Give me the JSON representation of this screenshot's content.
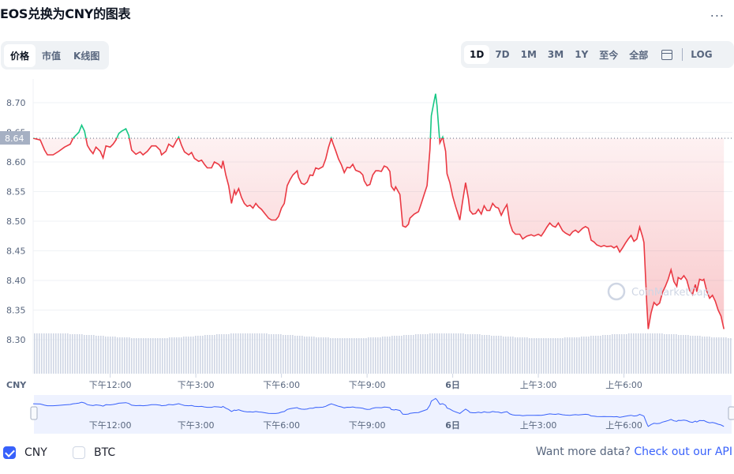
{
  "header": {
    "title": "EOS兑换为CNY的图表",
    "more_label": "..."
  },
  "tabs": [
    {
      "label": "价格",
      "active": true
    },
    {
      "label": "市值",
      "active": false
    },
    {
      "label": "K线图",
      "active": false
    }
  ],
  "ranges": [
    {
      "label": "1D",
      "active": true
    },
    {
      "label": "7D",
      "active": false
    },
    {
      "label": "1M",
      "active": false
    },
    {
      "label": "3M",
      "active": false
    },
    {
      "label": "1Y",
      "active": false
    },
    {
      "label": "至今",
      "active": false
    },
    {
      "label": "全部",
      "active": false
    }
  ],
  "log_label": "LOG",
  "colors": {
    "up": "#16c784",
    "down": "#ea3943",
    "navigator": "#3861fb",
    "volume": "#cfd6e4"
  },
  "chart_data": {
    "type": "line",
    "y_ticks": [
      "8.70",
      "8.65",
      "8.60",
      "8.55",
      "8.50",
      "8.45",
      "8.40",
      "8.35",
      "8.30"
    ],
    "ylim": [
      8.26,
      8.72
    ],
    "reference_price": 8.64,
    "reference_label": "8.64",
    "x_ticks": [
      "下午12:00",
      "下午3:00",
      "下午6:00",
      "下午9:00",
      "6日",
      "上午3:00",
      "上午6:00"
    ],
    "x_unit_label": "CNY",
    "x_range_hours": [
      0,
      24.5
    ],
    "x_tick_hours": [
      2.7,
      5.7,
      8.7,
      11.7,
      14.7,
      17.7,
      20.7
    ],
    "series": [
      {
        "name": "CNY",
        "points": [
          [
            0,
            8.64
          ],
          [
            0.25,
            8.637
          ],
          [
            0.4,
            8.62
          ],
          [
            0.5,
            8.612
          ],
          [
            0.7,
            8.612
          ],
          [
            0.9,
            8.618
          ],
          [
            1.1,
            8.625
          ],
          [
            1.3,
            8.63
          ],
          [
            1.4,
            8.64
          ],
          [
            1.5,
            8.645
          ],
          [
            1.6,
            8.65
          ],
          [
            1.7,
            8.662
          ],
          [
            1.8,
            8.652
          ],
          [
            1.9,
            8.628
          ],
          [
            2.0,
            8.62
          ],
          [
            2.1,
            8.614
          ],
          [
            2.2,
            8.625
          ],
          [
            2.35,
            8.618
          ],
          [
            2.45,
            8.607
          ],
          [
            2.55,
            8.627
          ],
          [
            2.7,
            8.625
          ],
          [
            2.8,
            8.63
          ],
          [
            2.9,
            8.637
          ],
          [
            3.0,
            8.648
          ],
          [
            3.1,
            8.652
          ],
          [
            3.25,
            8.656
          ],
          [
            3.35,
            8.645
          ],
          [
            3.45,
            8.62
          ],
          [
            3.6,
            8.613
          ],
          [
            3.75,
            8.617
          ],
          [
            3.85,
            8.612
          ],
          [
            4.0,
            8.618
          ],
          [
            4.15,
            8.627
          ],
          [
            4.3,
            8.627
          ],
          [
            4.45,
            8.62
          ],
          [
            4.5,
            8.612
          ],
          [
            4.65,
            8.618
          ],
          [
            4.75,
            8.63
          ],
          [
            4.9,
            8.625
          ],
          [
            5.0,
            8.634
          ],
          [
            5.1,
            8.642
          ],
          [
            5.2,
            8.628
          ],
          [
            5.3,
            8.617
          ],
          [
            5.45,
            8.612
          ],
          [
            5.55,
            8.616
          ],
          [
            5.65,
            8.606
          ],
          [
            5.8,
            8.601
          ],
          [
            5.9,
            8.603
          ],
          [
            6.0,
            8.596
          ],
          [
            6.1,
            8.59
          ],
          [
            6.25,
            8.59
          ],
          [
            6.35,
            8.6
          ],
          [
            6.5,
            8.596
          ],
          [
            6.6,
            8.59
          ],
          [
            6.65,
            8.602
          ],
          [
            6.75,
            8.578
          ],
          [
            6.85,
            8.56
          ],
          [
            6.95,
            8.53
          ],
          [
            7.05,
            8.552
          ],
          [
            7.1,
            8.545
          ],
          [
            7.2,
            8.555
          ],
          [
            7.3,
            8.54
          ],
          [
            7.4,
            8.53
          ],
          [
            7.5,
            8.525
          ],
          [
            7.6,
            8.527
          ],
          [
            7.7,
            8.522
          ],
          [
            7.8,
            8.53
          ],
          [
            7.9,
            8.524
          ],
          [
            8.0,
            8.52
          ],
          [
            8.1,
            8.514
          ],
          [
            8.25,
            8.505
          ],
          [
            8.35,
            8.502
          ],
          [
            8.5,
            8.502
          ],
          [
            8.6,
            8.508
          ],
          [
            8.7,
            8.522
          ],
          [
            8.8,
            8.53
          ],
          [
            8.9,
            8.56
          ],
          [
            9.0,
            8.57
          ],
          [
            9.1,
            8.578
          ],
          [
            9.25,
            8.585
          ],
          [
            9.3,
            8.574
          ],
          [
            9.4,
            8.564
          ],
          [
            9.5,
            8.562
          ],
          [
            9.6,
            8.566
          ],
          [
            9.7,
            8.578
          ],
          [
            9.8,
            8.577
          ],
          [
            9.9,
            8.59
          ],
          [
            10.0,
            8.588
          ],
          [
            10.15,
            8.592
          ],
          [
            10.25,
            8.605
          ],
          [
            10.35,
            8.625
          ],
          [
            10.45,
            8.64
          ],
          [
            10.5,
            8.632
          ],
          [
            10.6,
            8.619
          ],
          [
            10.7,
            8.605
          ],
          [
            10.8,
            8.595
          ],
          [
            10.9,
            8.582
          ],
          [
            11.0,
            8.591
          ],
          [
            11.1,
            8.59
          ],
          [
            11.2,
            8.596
          ],
          [
            11.3,
            8.586
          ],
          [
            11.45,
            8.583
          ],
          [
            11.55,
            8.578
          ],
          [
            11.6,
            8.568
          ],
          [
            11.7,
            8.56
          ],
          [
            11.8,
            8.562
          ],
          [
            11.9,
            8.578
          ],
          [
            12.0,
            8.585
          ],
          [
            12.1,
            8.585
          ],
          [
            12.2,
            8.584
          ],
          [
            12.3,
            8.593
          ],
          [
            12.4,
            8.591
          ],
          [
            12.5,
            8.584
          ],
          [
            12.55,
            8.559
          ],
          [
            12.65,
            8.552
          ],
          [
            12.7,
            8.558
          ],
          [
            12.85,
            8.545
          ],
          [
            12.95,
            8.492
          ],
          [
            13.05,
            8.49
          ],
          [
            13.15,
            8.495
          ],
          [
            13.2,
            8.505
          ],
          [
            13.35,
            8.512
          ],
          [
            13.5,
            8.516
          ],
          [
            13.6,
            8.53
          ],
          [
            13.7,
            8.545
          ],
          [
            13.8,
            8.56
          ],
          [
            13.9,
            8.62
          ],
          [
            13.95,
            8.678
          ],
          [
            14.05,
            8.703
          ],
          [
            14.1,
            8.715
          ],
          [
            14.15,
            8.695
          ],
          [
            14.25,
            8.632
          ],
          [
            14.35,
            8.642
          ],
          [
            14.45,
            8.618
          ],
          [
            14.5,
            8.58
          ],
          [
            14.6,
            8.565
          ],
          [
            14.7,
            8.542
          ],
          [
            14.8,
            8.525
          ],
          [
            14.9,
            8.51
          ],
          [
            14.95,
            8.502
          ],
          [
            15.05,
            8.535
          ],
          [
            15.15,
            8.565
          ],
          [
            15.25,
            8.538
          ],
          [
            15.3,
            8.518
          ],
          [
            15.4,
            8.512
          ],
          [
            15.5,
            8.513
          ],
          [
            15.6,
            8.52
          ],
          [
            15.7,
            8.512
          ],
          [
            15.8,
            8.526
          ],
          [
            15.9,
            8.518
          ],
          [
            16.0,
            8.518
          ],
          [
            16.1,
            8.53
          ],
          [
            16.2,
            8.524
          ],
          [
            16.3,
            8.522
          ],
          [
            16.4,
            8.51
          ],
          [
            16.5,
            8.52
          ],
          [
            16.6,
            8.528
          ],
          [
            16.7,
            8.497
          ],
          [
            16.8,
            8.483
          ],
          [
            16.9,
            8.478
          ],
          [
            17.05,
            8.478
          ],
          [
            17.15,
            8.47
          ],
          [
            17.3,
            8.475
          ],
          [
            17.45,
            8.477
          ],
          [
            17.55,
            8.475
          ],
          [
            17.7,
            8.478
          ],
          [
            17.8,
            8.475
          ],
          [
            17.9,
            8.482
          ],
          [
            18.0,
            8.49
          ],
          [
            18.1,
            8.497
          ],
          [
            18.2,
            8.492
          ],
          [
            18.3,
            8.49
          ],
          [
            18.4,
            8.497
          ],
          [
            18.55,
            8.484
          ],
          [
            18.65,
            8.48
          ],
          [
            18.8,
            8.476
          ],
          [
            18.9,
            8.482
          ],
          [
            19.0,
            8.485
          ],
          [
            19.1,
            8.481
          ],
          [
            19.25,
            8.488
          ],
          [
            19.35,
            8.491
          ],
          [
            19.45,
            8.488
          ],
          [
            19.55,
            8.468
          ],
          [
            19.65,
            8.465
          ],
          [
            19.75,
            8.46
          ],
          [
            19.9,
            8.457
          ],
          [
            20.0,
            8.459
          ],
          [
            20.1,
            8.457
          ],
          [
            20.25,
            8.458
          ],
          [
            20.35,
            8.455
          ],
          [
            20.45,
            8.458
          ],
          [
            20.55,
            8.448
          ],
          [
            20.65,
            8.455
          ],
          [
            20.75,
            8.463
          ],
          [
            20.85,
            8.47
          ],
          [
            20.95,
            8.476
          ],
          [
            21.05,
            8.466
          ],
          [
            21.15,
            8.47
          ],
          [
            21.25,
            8.49
          ],
          [
            21.35,
            8.474
          ],
          [
            21.4,
            8.464
          ],
          [
            21.5,
            8.36
          ],
          [
            21.55,
            8.318
          ],
          [
            21.65,
            8.345
          ],
          [
            21.75,
            8.363
          ],
          [
            21.85,
            8.358
          ],
          [
            21.95,
            8.362
          ],
          [
            22.05,
            8.38
          ],
          [
            22.15,
            8.39
          ],
          [
            22.25,
            8.402
          ],
          [
            22.35,
            8.418
          ],
          [
            22.45,
            8.398
          ],
          [
            22.55,
            8.39
          ],
          [
            22.6,
            8.405
          ],
          [
            22.7,
            8.402
          ],
          [
            22.8,
            8.408
          ],
          [
            22.9,
            8.401
          ],
          [
            23.0,
            8.383
          ],
          [
            23.1,
            8.376
          ],
          [
            23.2,
            8.393
          ],
          [
            23.25,
            8.381
          ],
          [
            23.35,
            8.402
          ],
          [
            23.45,
            8.4
          ],
          [
            23.5,
            8.402
          ],
          [
            23.6,
            8.382
          ],
          [
            23.7,
            8.37
          ],
          [
            23.8,
            8.375
          ],
          [
            23.9,
            8.365
          ],
          [
            24.0,
            8.35
          ],
          [
            24.1,
            8.34
          ],
          [
            24.2,
            8.318
          ]
        ]
      }
    ],
    "watermark": "CoinMarketCap"
  },
  "footer": {
    "cny_label": "CNY",
    "btc_label": "BTC",
    "api_prefix": "Want more data?",
    "api_link": "Check out our API"
  }
}
